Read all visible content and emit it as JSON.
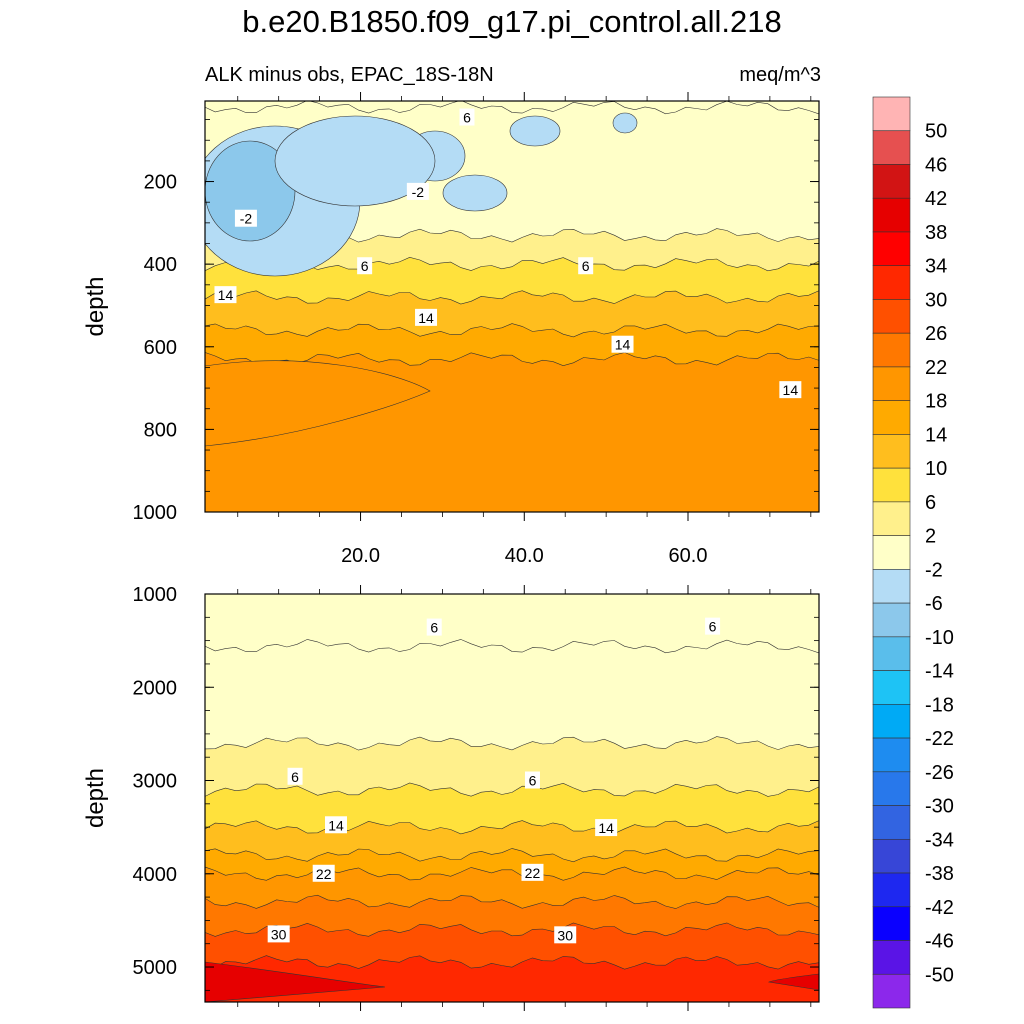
{
  "title": "b.e20.B1850.f09_g17.pi_control.all.218",
  "subtitle_left": "ALK minus obs, EPAC_18S-18N",
  "units": "meq/m^3",
  "colorbar": {
    "labels": [
      "50",
      "46",
      "42",
      "38",
      "34",
      "30",
      "26",
      "22",
      "18",
      "14",
      "10",
      "6",
      "2",
      "-2",
      "-6",
      "-10",
      "-14",
      "-18",
      "-22",
      "-26",
      "-30",
      "-34",
      "-38",
      "-42",
      "-46",
      "-50"
    ],
    "colors": [
      "#ffb4b4",
      "#e65050",
      "#d21414",
      "#e60000",
      "#ff0000",
      "#ff2800",
      "#ff5000",
      "#ff7800",
      "#ff9600",
      "#ffaa00",
      "#ffbe1e",
      "#ffe13c",
      "#fff08c",
      "#ffffc8",
      "#b4dcf5",
      "#8cc8eb",
      "#5abeeb",
      "#1ec3f5",
      "#00aaf5",
      "#1e8cf0",
      "#2878eb",
      "#3264e1",
      "#3746d7",
      "#1e28f0",
      "#0a00ff",
      "#5a14e6",
      "#8c28eb"
    ]
  },
  "chart_data": [
    {
      "type": "contour",
      "panel": "upper",
      "ylabel": "depth",
      "xlabel": "",
      "xticks": [
        "20.0",
        "40.0",
        "60.0"
      ],
      "yticks": [
        "200",
        "400",
        "600",
        "800",
        "1000"
      ],
      "xlim": [
        1,
        76
      ],
      "ylim": [
        1000,
        5
      ],
      "bands": [
        {
          "level": "2",
          "depth_start": 20
        },
        {
          "level": "6",
          "depth_start": 330
        },
        {
          "level": "10",
          "depth_start": 400
        },
        {
          "level": "14",
          "depth_start": 480
        },
        {
          "level": "18",
          "depth_start": 560
        },
        {
          "level": "22",
          "depth_start": 630
        }
      ],
      "contour_labels": [
        {
          "text": "6",
          "x": 33,
          "y": 45
        },
        {
          "text": "-2",
          "x": 27,
          "y": 225
        },
        {
          "text": "-2",
          "x": 6,
          "y": 290
        },
        {
          "text": "6",
          "x": 20.5,
          "y": 405
        },
        {
          "text": "6",
          "x": 47.5,
          "y": 405
        },
        {
          "text": "14",
          "x": 3.5,
          "y": 475
        },
        {
          "text": "14",
          "x": 28,
          "y": 530
        },
        {
          "text": "14",
          "x": 52,
          "y": 595
        },
        {
          "text": "14",
          "x": 72.5,
          "y": 705
        }
      ]
    },
    {
      "type": "contour",
      "panel": "lower",
      "ylabel": "depth",
      "xlabel": "",
      "yticks": [
        "1000",
        "2000",
        "3000",
        "4000",
        "5000"
      ],
      "xlim": [
        1,
        76
      ],
      "ylim": [
        5375,
        1000
      ],
      "bands": [
        {
          "level": "2",
          "depth_start": 1560
        },
        {
          "level": "6",
          "depth_start": 2600
        },
        {
          "level": "10",
          "depth_start": 3100
        },
        {
          "level": "14",
          "depth_start": 3500
        },
        {
          "level": "18",
          "depth_start": 3800
        },
        {
          "level": "22",
          "depth_start": 4000
        },
        {
          "level": "26",
          "depth_start": 4300
        },
        {
          "level": "30",
          "depth_start": 4600
        },
        {
          "level": "34",
          "depth_start": 4950
        }
      ],
      "contour_labels": [
        {
          "text": "6",
          "x": 29,
          "y": 1360
        },
        {
          "text": "6",
          "x": 63,
          "y": 1350
        },
        {
          "text": "6",
          "x": 12,
          "y": 2960
        },
        {
          "text": "6",
          "x": 41,
          "y": 3000
        },
        {
          "text": "14",
          "x": 17,
          "y": 3480
        },
        {
          "text": "14",
          "x": 50,
          "y": 3510
        },
        {
          "text": "22",
          "x": 15.5,
          "y": 4000
        },
        {
          "text": "22",
          "x": 41,
          "y": 3990
        },
        {
          "text": "30",
          "x": 10,
          "y": 4650
        },
        {
          "text": "30",
          "x": 45,
          "y": 4660
        }
      ]
    }
  ]
}
